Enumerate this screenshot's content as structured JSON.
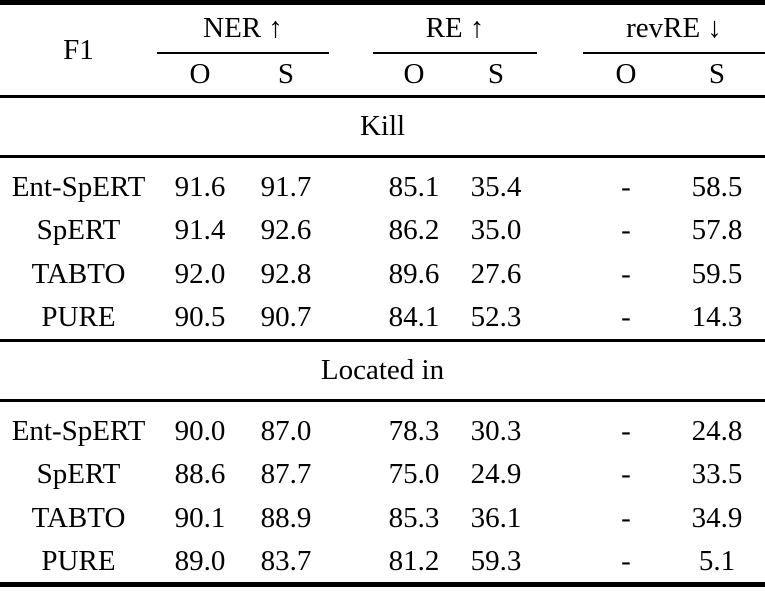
{
  "table": {
    "corner_label": "F1",
    "groups": [
      {
        "label": "NER ↑",
        "columns": [
          "O",
          "S"
        ]
      },
      {
        "label": "RE ↑",
        "columns": [
          "O",
          "S"
        ]
      },
      {
        "label": "revRE ↓",
        "columns": [
          "O",
          "S"
        ]
      }
    ],
    "sections": [
      {
        "title": "Kill",
        "rows": [
          {
            "model": "Ent-SpERT",
            "values": [
              "91.6",
              "91.7",
              "85.1",
              "35.4",
              "-",
              "58.5"
            ],
            "bold": [
              false,
              false,
              false,
              false,
              false,
              false
            ]
          },
          {
            "model": "SpERT",
            "values": [
              "91.4",
              "92.6",
              "86.2",
              "35.0",
              "-",
              "57.8"
            ],
            "bold": [
              false,
              true,
              false,
              false,
              false,
              false
            ]
          },
          {
            "model": "TABTO",
            "values": [
              "92.0",
              "92.8",
              "89.6",
              "27.6",
              "-",
              "59.5"
            ],
            "bold": [
              true,
              true,
              true,
              false,
              false,
              false
            ]
          },
          {
            "model": "PURE",
            "values": [
              "90.5",
              "90.7",
              "84.1",
              "52.3",
              "-",
              "14.3"
            ],
            "bold": [
              false,
              false,
              false,
              true,
              false,
              true
            ]
          }
        ]
      },
      {
        "title": "Located in",
        "rows": [
          {
            "model": "Ent-SpERT",
            "values": [
              "90.0",
              "87.0",
              "78.3",
              "30.3",
              "-",
              "24.8"
            ],
            "bold": [
              true,
              false,
              false,
              false,
              false,
              false
            ]
          },
          {
            "model": "SpERT",
            "values": [
              "88.6",
              "87.7",
              "75.0",
              "24.9",
              "-",
              "33.5"
            ],
            "bold": [
              false,
              false,
              false,
              false,
              false,
              false
            ]
          },
          {
            "model": "TABTO",
            "values": [
              "90.1",
              "88.9",
              "85.3",
              "36.1",
              "-",
              "34.9"
            ],
            "bold": [
              true,
              true,
              true,
              false,
              false,
              false
            ]
          },
          {
            "model": "PURE",
            "values": [
              "89.0",
              "83.7",
              "81.2",
              "59.3",
              "-",
              "5.1"
            ],
            "bold": [
              false,
              false,
              false,
              true,
              false,
              true
            ]
          }
        ]
      }
    ]
  },
  "chart_data": {
    "type": "table",
    "title": "F1 results table",
    "metric": "F1",
    "column_groups": [
      "NER ↑",
      "RE ↑",
      "revRE ↓"
    ],
    "sub_columns": [
      "O",
      "S"
    ],
    "sections": [
      {
        "title": "Kill",
        "rows": [
          {
            "model": "Ent-SpERT",
            "NER_O": 91.6,
            "NER_S": 91.7,
            "RE_O": 85.1,
            "RE_S": 35.4,
            "revRE_O": null,
            "revRE_S": 58.5
          },
          {
            "model": "SpERT",
            "NER_O": 91.4,
            "NER_S": 92.6,
            "RE_O": 86.2,
            "RE_S": 35.0,
            "revRE_O": null,
            "revRE_S": 57.8
          },
          {
            "model": "TABTO",
            "NER_O": 92.0,
            "NER_S": 92.8,
            "RE_O": 89.6,
            "RE_S": 27.6,
            "revRE_O": null,
            "revRE_S": 59.5
          },
          {
            "model": "PURE",
            "NER_O": 90.5,
            "NER_S": 90.7,
            "RE_O": 84.1,
            "RE_S": 52.3,
            "revRE_O": null,
            "revRE_S": 14.3
          }
        ]
      },
      {
        "title": "Located in",
        "rows": [
          {
            "model": "Ent-SpERT",
            "NER_O": 90.0,
            "NER_S": 87.0,
            "RE_O": 78.3,
            "RE_S": 30.3,
            "revRE_O": null,
            "revRE_S": 24.8
          },
          {
            "model": "SpERT",
            "NER_O": 88.6,
            "NER_S": 87.7,
            "RE_O": 75.0,
            "RE_S": 24.9,
            "revRE_O": null,
            "revRE_S": 33.5
          },
          {
            "model": "TABTO",
            "NER_O": 90.1,
            "NER_S": 88.9,
            "RE_O": 85.3,
            "RE_S": 36.1,
            "revRE_O": null,
            "revRE_S": 34.9
          },
          {
            "model": "PURE",
            "NER_O": 89.0,
            "NER_S": 83.7,
            "RE_O": 81.2,
            "RE_S": 59.3,
            "revRE_O": null,
            "revRE_S": 5.1
          }
        ]
      }
    ]
  }
}
